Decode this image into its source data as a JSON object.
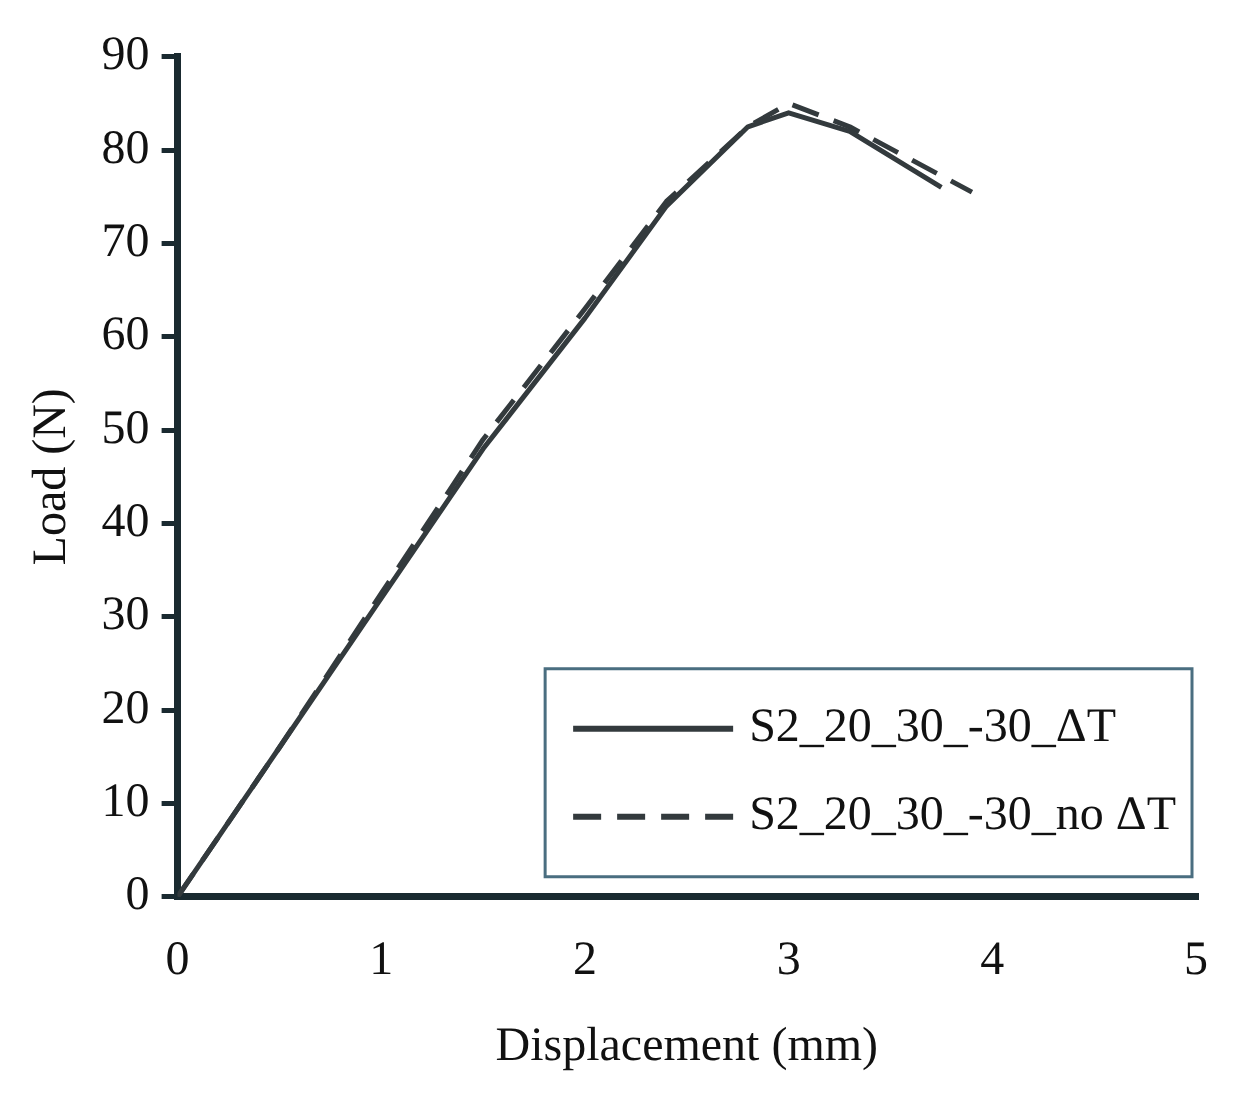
{
  "chart_data": {
    "type": "line",
    "xlabel": "Displacement (mm)",
    "ylabel": "Load (N)",
    "xlim": [
      0,
      5
    ],
    "xticks": [
      0,
      1,
      2,
      3,
      4,
      5
    ],
    "ylim": [
      0,
      90
    ],
    "yticks": [
      0,
      10,
      20,
      30,
      40,
      50,
      60,
      70,
      80,
      90
    ],
    "grid": false,
    "legend": "bottom right",
    "marker": "none",
    "series": [
      {
        "name": "S2_20_30_-30_ΔT",
        "color": "#333a3d",
        "line_style": "solid",
        "x": [
          0,
          0.5,
          1,
          1.5,
          2,
          2.4,
          2.8,
          3,
          3.3,
          3.75
        ],
        "values": [
          0,
          16,
          32,
          48,
          62,
          74,
          82.5,
          84,
          82,
          76
        ]
      },
      {
        "name": "S2_20_30_-30_no ΔT",
        "color": "#333a3d",
        "line_style": "dashed",
        "x": [
          0,
          0.5,
          1,
          1.5,
          2,
          2.4,
          2.8,
          3,
          3.3,
          3.9
        ],
        "values": [
          0,
          16,
          32.5,
          49,
          63,
          74.5,
          82.5,
          85,
          82.5,
          75.5
        ]
      }
    ]
  }
}
